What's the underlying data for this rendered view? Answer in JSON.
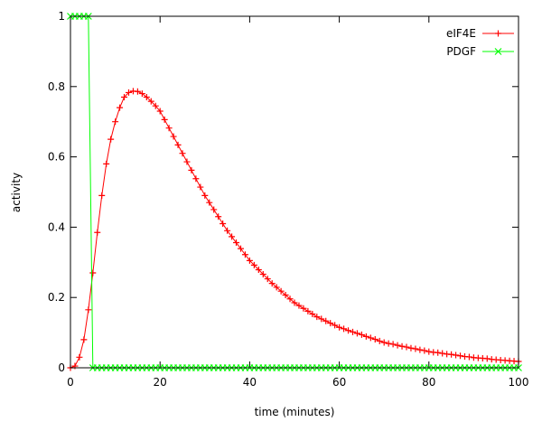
{
  "chart_data": {
    "type": "line",
    "title": "",
    "xlabel": "time (minutes)",
    "ylabel": "activity",
    "xlim": [
      0,
      100
    ],
    "ylim": [
      0,
      1
    ],
    "xticks": [
      0,
      20,
      40,
      60,
      80,
      100
    ],
    "xtick_labels": [
      "0",
      "20",
      "40",
      "60",
      "80",
      "100"
    ],
    "yticks": [
      0,
      0.2,
      0.4,
      0.6,
      0.8,
      1
    ],
    "ytick_labels": [
      "0",
      "0.2",
      "0.4",
      "0.6",
      "0.8",
      "1"
    ],
    "grid": false,
    "legend_position": "top-right",
    "x": [
      0,
      1,
      2,
      3,
      4,
      5,
      6,
      7,
      8,
      9,
      10,
      11,
      12,
      13,
      14,
      15,
      16,
      17,
      18,
      19,
      20,
      21,
      22,
      23,
      24,
      25,
      26,
      27,
      28,
      29,
      30,
      31,
      32,
      33,
      34,
      35,
      36,
      37,
      38,
      39,
      40,
      41,
      42,
      43,
      44,
      45,
      46,
      47,
      48,
      49,
      50,
      51,
      52,
      53,
      54,
      55,
      56,
      57,
      58,
      59,
      60,
      61,
      62,
      63,
      64,
      65,
      66,
      67,
      68,
      69,
      70,
      71,
      72,
      73,
      74,
      75,
      76,
      77,
      78,
      79,
      80,
      81,
      82,
      83,
      84,
      85,
      86,
      87,
      88,
      89,
      90,
      91,
      92,
      93,
      94,
      95,
      96,
      97,
      98,
      99,
      100
    ],
    "series": [
      {
        "name": "eIF4E",
        "color": "#ff0000",
        "marker": "plus",
        "values": [
          0,
          0.005,
          0.03,
          0.08,
          0.165,
          0.27,
          0.385,
          0.49,
          0.58,
          0.65,
          0.7,
          0.74,
          0.77,
          0.783,
          0.787,
          0.786,
          0.78,
          0.77,
          0.758,
          0.745,
          0.73,
          0.706,
          0.682,
          0.658,
          0.634,
          0.61,
          0.586,
          0.562,
          0.538,
          0.514,
          0.49,
          0.47,
          0.45,
          0.43,
          0.41,
          0.39,
          0.373,
          0.356,
          0.339,
          0.322,
          0.305,
          0.292,
          0.279,
          0.266,
          0.253,
          0.24,
          0.229,
          0.218,
          0.207,
          0.196,
          0.185,
          0.177,
          0.169,
          0.161,
          0.153,
          0.145,
          0.139,
          0.133,
          0.127,
          0.121,
          0.115,
          0.111,
          0.106,
          0.102,
          0.098,
          0.094,
          0.089,
          0.085,
          0.081,
          0.076,
          0.072,
          0.069,
          0.067,
          0.064,
          0.061,
          0.059,
          0.056,
          0.054,
          0.051,
          0.049,
          0.046,
          0.044,
          0.043,
          0.041,
          0.039,
          0.038,
          0.036,
          0.034,
          0.032,
          0.031,
          0.029,
          0.028,
          0.027,
          0.026,
          0.024,
          0.023,
          0.022,
          0.021,
          0.02,
          0.019,
          0.018
        ]
      },
      {
        "name": "PDGF",
        "color": "#00ff00",
        "marker": "cross",
        "values": [
          1,
          1,
          1,
          1,
          1,
          0,
          0,
          0,
          0,
          0,
          0,
          0,
          0,
          0,
          0,
          0,
          0,
          0,
          0,
          0,
          0,
          0,
          0,
          0,
          0,
          0,
          0,
          0,
          0,
          0,
          0,
          0,
          0,
          0,
          0,
          0,
          0,
          0,
          0,
          0,
          0,
          0,
          0,
          0,
          0,
          0,
          0,
          0,
          0,
          0,
          0,
          0,
          0,
          0,
          0,
          0,
          0,
          0,
          0,
          0,
          0,
          0,
          0,
          0,
          0,
          0,
          0,
          0,
          0,
          0,
          0,
          0,
          0,
          0,
          0,
          0,
          0,
          0,
          0,
          0,
          0,
          0,
          0,
          0,
          0,
          0,
          0,
          0,
          0,
          0,
          0,
          0,
          0,
          0,
          0,
          0,
          0,
          0,
          0,
          0,
          0
        ]
      }
    ]
  }
}
